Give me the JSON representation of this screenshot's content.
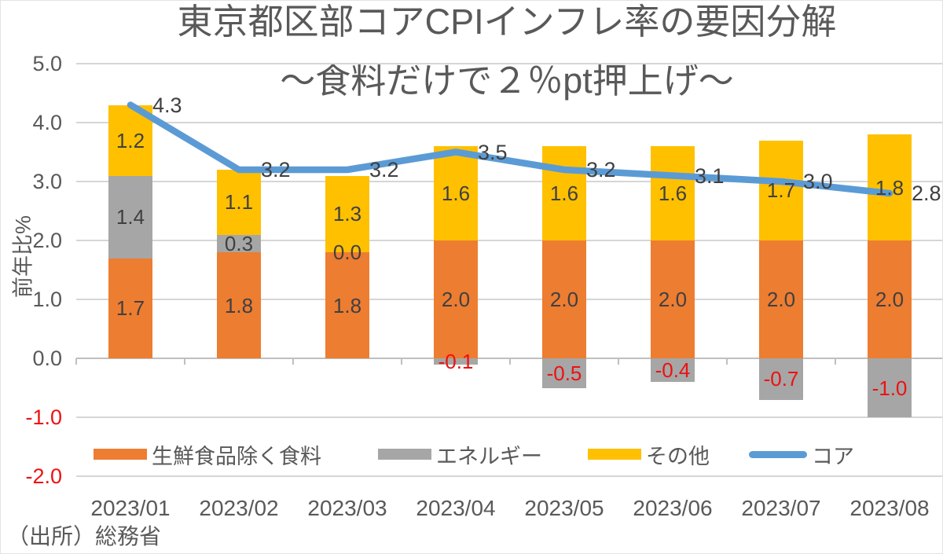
{
  "title": "東京都区部コアCPIインフレ率の要因分解",
  "subtitle": "～食料だけで２％pt押上げ～",
  "source_note": "（出所）総務省",
  "chart_data": {
    "type": "bar",
    "subtype": "stacked-bar-with-line",
    "title": "東京都区部コアCPIインフレ率の要因分解",
    "subtitle": "～食料だけで２％pt押上げ～",
    "ylabel": "前年比%",
    "ylim": [
      -2.0,
      5.0
    ],
    "y_ticks": [
      "5.0",
      "4.0",
      "3.0",
      "2.0",
      "1.0",
      "0.0",
      "-1.0",
      "-2.0"
    ],
    "grid": true,
    "legend_position": "bottom-inside",
    "categories": [
      "2023/01",
      "2023/02",
      "2023/03",
      "2023/04",
      "2023/05",
      "2023/06",
      "2023/07",
      "2023/08"
    ],
    "series": [
      {
        "name": "生鮮食品除く食料",
        "chart": "bar",
        "color": "#ED7D31",
        "values": [
          1.7,
          1.8,
          1.8,
          2.0,
          2.0,
          2.0,
          2.0,
          2.0
        ]
      },
      {
        "name": "エネルギー",
        "chart": "bar",
        "color": "#A6A6A6",
        "values": [
          1.4,
          0.3,
          0.0,
          -0.1,
          -0.5,
          -0.4,
          -0.7,
          -1.0
        ]
      },
      {
        "name": "その他",
        "chart": "bar",
        "color": "#FFC000",
        "values": [
          1.2,
          1.1,
          1.3,
          1.6,
          1.6,
          1.6,
          1.7,
          1.8
        ]
      },
      {
        "name": "コア",
        "chart": "line",
        "color": "#5B9BD5",
        "values": [
          4.3,
          3.2,
          3.2,
          3.5,
          3.2,
          3.1,
          3.0,
          2.8
        ]
      }
    ],
    "label_color": "#404040",
    "negative_color": "#EE1111",
    "axis_text_color": "#595959"
  }
}
